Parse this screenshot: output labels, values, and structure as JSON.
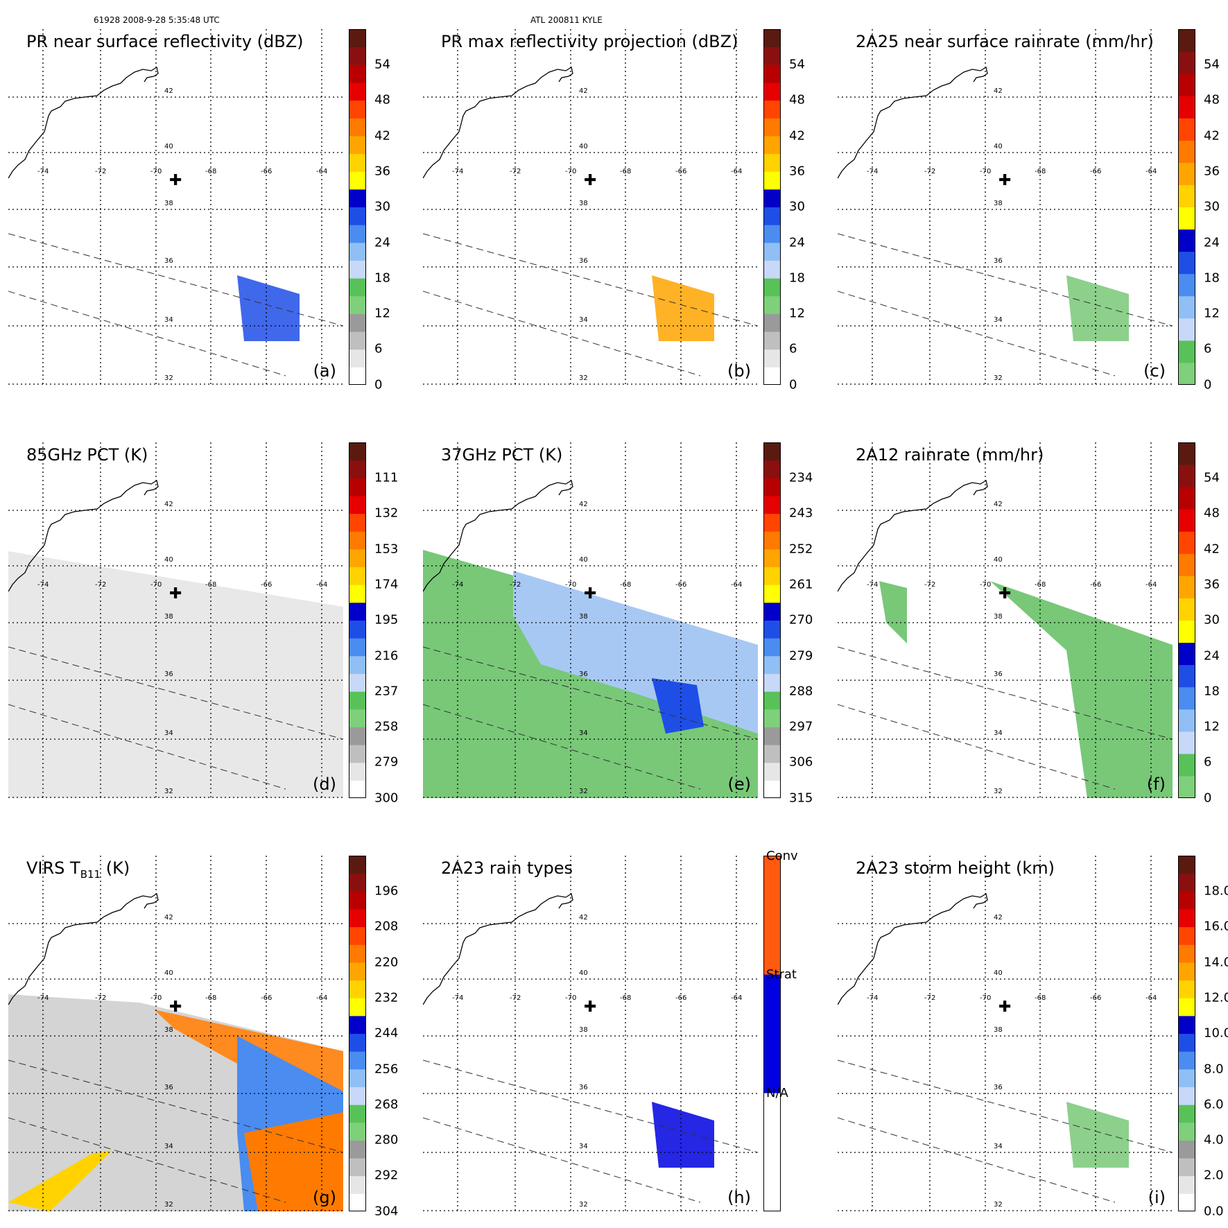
{
  "header": {
    "left": "61928 2008-9-28 5:35:48 UTC",
    "center": "ATL 200811 KYLE"
  },
  "lat_labels": [
    "42",
    "40",
    "38",
    "36",
    "34",
    "32"
  ],
  "lon_labels": [
    "-74",
    "-72",
    "-70",
    "-68",
    "-66",
    "-64"
  ],
  "panels": [
    {
      "title": "PR near surface reflectivity (dBZ)",
      "label": "(a)",
      "ticks": [
        "54",
        "48",
        "42",
        "36",
        "30",
        "24",
        "18",
        "12",
        "6",
        "0"
      ],
      "scale": "refl"
    },
    {
      "title": "PR max reflectivity projection (dBZ)",
      "label": "(b)",
      "ticks": [
        "54",
        "48",
        "42",
        "36",
        "30",
        "24",
        "18",
        "12",
        "6",
        "0"
      ],
      "scale": "refl"
    },
    {
      "title": "2A25 near surface rainrate (mm/hr)",
      "label": "(c)",
      "ticks": [
        "54",
        "48",
        "42",
        "36",
        "30",
        "24",
        "18",
        "12",
        "6",
        "0"
      ],
      "scale": "rain"
    },
    {
      "title": "85GHz PCT (K)",
      "label": "(d)",
      "ticks": [
        "111",
        "132",
        "153",
        "174",
        "195",
        "216",
        "237",
        "258",
        "279",
        "300"
      ],
      "scale": "refl"
    },
    {
      "title": "37GHz PCT (K)",
      "label": "(e)",
      "ticks": [
        "234",
        "243",
        "252",
        "261",
        "270",
        "279",
        "288",
        "297",
        "306",
        "315"
      ],
      "scale": "refl"
    },
    {
      "title": "2A12 rainrate (mm/hr)",
      "label": "(f)",
      "ticks": [
        "54",
        "48",
        "42",
        "36",
        "30",
        "24",
        "18",
        "12",
        "6",
        "0"
      ],
      "scale": "rain"
    },
    {
      "title": "VIRS T",
      "title_sub": "B11",
      "title_suffix": " (K)",
      "label": "(g)",
      "ticks": [
        "196",
        "208",
        "220",
        "232",
        "244",
        "256",
        "268",
        "280",
        "292",
        "304"
      ],
      "scale": "refl"
    },
    {
      "title": "2A23 rain types",
      "label": "(h)",
      "ticks": [
        "Conv",
        "Strat",
        "N/A"
      ],
      "scale": "type"
    },
    {
      "title": "2A23 storm height (km)",
      "label": "(i)",
      "ticks": [
        "18.0",
        "16.0",
        "14.0",
        "12.0",
        "10.0",
        "8.0",
        "6.0",
        "4.0",
        "2.0",
        "0.0"
      ],
      "scale": "refl"
    }
  ],
  "colors": {
    "refl": [
      "#ffffff",
      "#e6e6e6",
      "#bfbfbf",
      "#9a9a9a",
      "#7fd07a",
      "#58c258",
      "#c8d8f8",
      "#8fbff5",
      "#4a8cf0",
      "#1f4ee6",
      "#0000c8",
      "#ffff00",
      "#ffd200",
      "#ffa500",
      "#ff7a00",
      "#ff4500",
      "#e60000",
      "#b80000",
      "#8a1010",
      "#5a1a10"
    ],
    "rain": [
      "#7fd07a",
      "#58c258",
      "#c8d8f8",
      "#8fbff5",
      "#4a8cf0",
      "#1f4ee6",
      "#0000c8",
      "#ffff00",
      "#ffd200",
      "#ffa500",
      "#ff7a00",
      "#ff4500",
      "#e60000",
      "#b80000",
      "#8a1010",
      "#5a1a10"
    ],
    "type": [
      "#ffffff",
      "#0000e0",
      "#ff5a10"
    ]
  }
}
